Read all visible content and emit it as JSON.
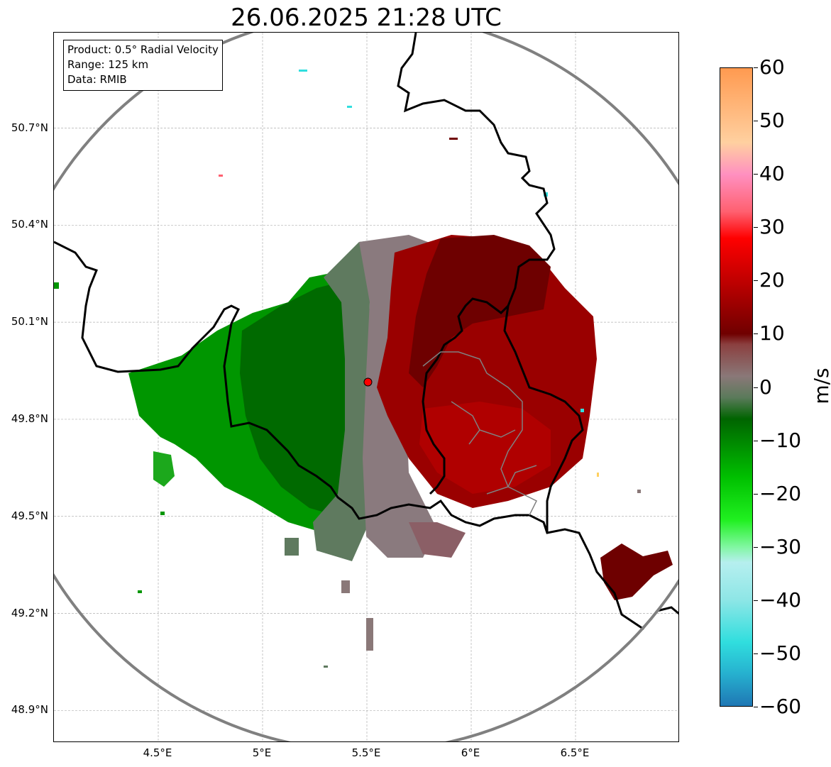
{
  "title": "26.06.2025 21:28 UTC",
  "info": {
    "product": "Product: 0.5° Radial Velocity",
    "range": "Range: 125 km",
    "source": "Data: RMIB"
  },
  "map": {
    "type": "radar-ppi",
    "lon_range": [
      4.0,
      7.0
    ],
    "lat_range": [
      48.8,
      51.0
    ],
    "radar_site": {
      "lon": 5.505,
      "lat": 49.915
    },
    "range_ring_km": 125,
    "grid": true,
    "x_ticks": [
      "4.5°E",
      "5°E",
      "5.5°E",
      "6°E",
      "6.5°E"
    ],
    "x_tick_values": [
      4.5,
      5.0,
      5.5,
      6.0,
      6.5
    ],
    "y_ticks": [
      "50.7°N",
      "50.4°N",
      "50.1°N",
      "49.8°N",
      "49.5°N",
      "49.2°N",
      "48.9°N"
    ],
    "y_tick_values": [
      50.7,
      50.4,
      50.1,
      49.8,
      49.5,
      49.2,
      48.9
    ]
  },
  "colorbar": {
    "label": "m/s",
    "min": -60,
    "max": 60,
    "ticks": [
      "60",
      "50",
      "40",
      "30",
      "20",
      "10",
      "0",
      "−10",
      "−20",
      "−30",
      "−40",
      "−50",
      "−60"
    ],
    "stops": [
      {
        "v": -60,
        "c": "#1f77b4"
      },
      {
        "v": -54,
        "c": "#26b0cf"
      },
      {
        "v": -48,
        "c": "#30dede"
      },
      {
        "v": -40,
        "c": "#8ee6e6"
      },
      {
        "v": -33,
        "c": "#b6efef"
      },
      {
        "v": -30,
        "c": "#7ff79f"
      },
      {
        "v": -25,
        "c": "#20f020"
      },
      {
        "v": -17,
        "c": "#00c000"
      },
      {
        "v": -6,
        "c": "#006400"
      },
      {
        "v": -2,
        "c": "#5a7a5a"
      },
      {
        "v": 2,
        "c": "#8a7878"
      },
      {
        "v": 8,
        "c": "#8b4040"
      },
      {
        "v": 10,
        "c": "#700000"
      },
      {
        "v": 20,
        "c": "#c00000"
      },
      {
        "v": 28,
        "c": "#ff0000"
      },
      {
        "v": 33,
        "c": "#ff6070"
      },
      {
        "v": 40,
        "c": "#ff90c0"
      },
      {
        "v": 46,
        "c": "#ffd0a0"
      },
      {
        "v": 60,
        "c": "#ff9a50"
      }
    ]
  },
  "colors": {
    "frame": "#000000",
    "grid": "#b0b0b0",
    "range_ring": "#808080",
    "border": "#000000",
    "inner_border": "#808080",
    "radar_marker": "#ff0000"
  }
}
